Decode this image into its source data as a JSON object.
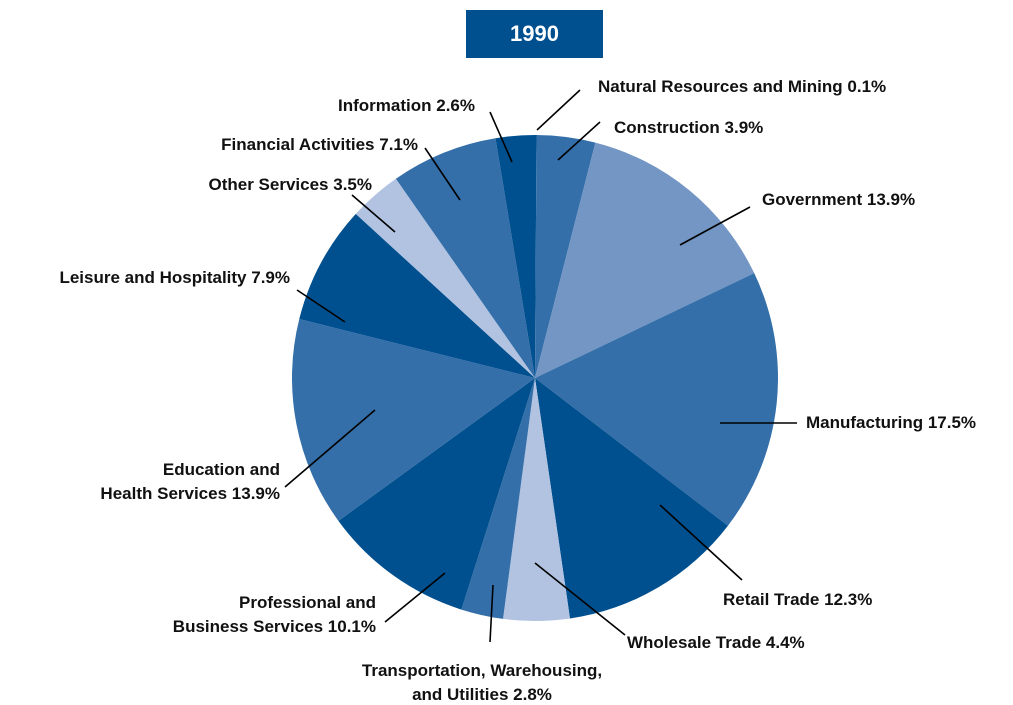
{
  "chart_data": {
    "type": "pie",
    "title": "1990",
    "categories": [
      "Natural Resources and Mining",
      "Construction",
      "Government",
      "Manufacturing",
      "Retail Trade",
      "Wholesale Trade",
      "Transportation, Warehousing, and Utilities",
      "Professional and Business Services",
      "Education and Health Services",
      "Leisure and Hospitality",
      "Other Services",
      "Financial Activities",
      "Information"
    ],
    "values": [
      0.1,
      3.9,
      13.9,
      17.5,
      12.3,
      4.4,
      2.8,
      10.1,
      13.9,
      7.9,
      3.5,
      7.1,
      2.6
    ],
    "value_labels": [
      "0.1%",
      "3.9%",
      "13.9%",
      "17.5%",
      "12.3%",
      "4.4%",
      "2.8%",
      "10.1%",
      "13.9%",
      "7.9%",
      "3.5%",
      "7.1%",
      "2.6%"
    ],
    "colors": [
      "#00508f",
      "#346fa9",
      "#7396c4",
      "#346fa9",
      "#00508f",
      "#b1c3e1",
      "#346fa9",
      "#00508f",
      "#346fa9",
      "#00508f",
      "#b1c3e1",
      "#346fa9",
      "#00508f"
    ]
  }
}
